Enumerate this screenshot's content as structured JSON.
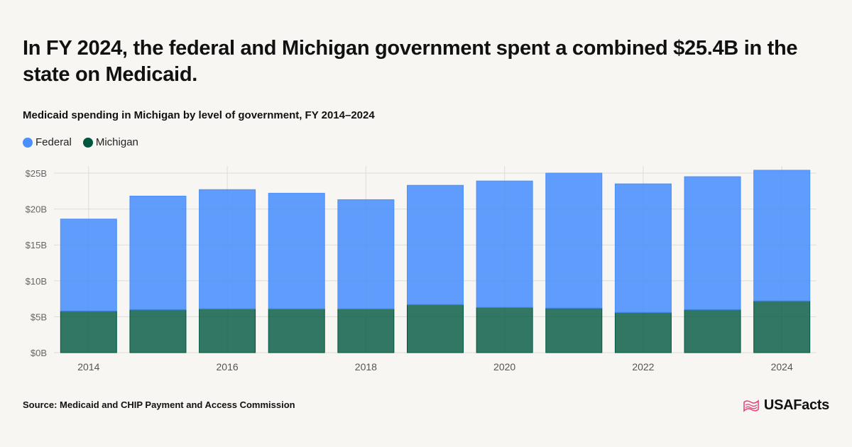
{
  "headline": "In FY 2024, the federal and Michigan government spent a combined $25.4B in the state on Medicaid.",
  "source": "Source: Medicaid and CHIP Payment and Access Commission",
  "brand": {
    "name": "USAFacts",
    "logo_icon": "us-map-flag-icon",
    "logo_color": "#e6467f"
  },
  "colors": {
    "federal": "#4a8ffc",
    "michigan": "#00573f",
    "background": "#f7f6f2",
    "grid": "#dcdcd8"
  },
  "chart_data": {
    "type": "bar",
    "stacked": true,
    "title": "Medicaid spending in Michigan by level of government, FY 2014–2024",
    "categories": [
      "2014",
      "2015",
      "2016",
      "2017",
      "2018",
      "2019",
      "2020",
      "2021",
      "2022",
      "2023",
      "2024"
    ],
    "x_tick_labels": [
      "2014",
      "",
      "2016",
      "",
      "2018",
      "",
      "2020",
      "",
      "2022",
      "",
      "2024"
    ],
    "series": [
      {
        "name": "Michigan",
        "values": [
          5.8,
          6.0,
          6.1,
          6.1,
          6.1,
          6.7,
          6.3,
          6.2,
          5.6,
          6.0,
          7.2
        ]
      },
      {
        "name": "Federal",
        "values": [
          12.8,
          15.8,
          16.6,
          16.1,
          15.2,
          16.6,
          17.6,
          18.8,
          17.9,
          18.5,
          18.2
        ]
      }
    ],
    "ylim": [
      0,
      25
    ],
    "y_ticks": [
      0,
      5,
      10,
      15,
      20,
      25
    ],
    "y_tick_labels": [
      "$0B",
      "$5B",
      "$10B",
      "$15B",
      "$20B",
      "$25B"
    ],
    "xlabel": "",
    "ylabel": "",
    "legend_position": "top-left",
    "grid": true
  }
}
